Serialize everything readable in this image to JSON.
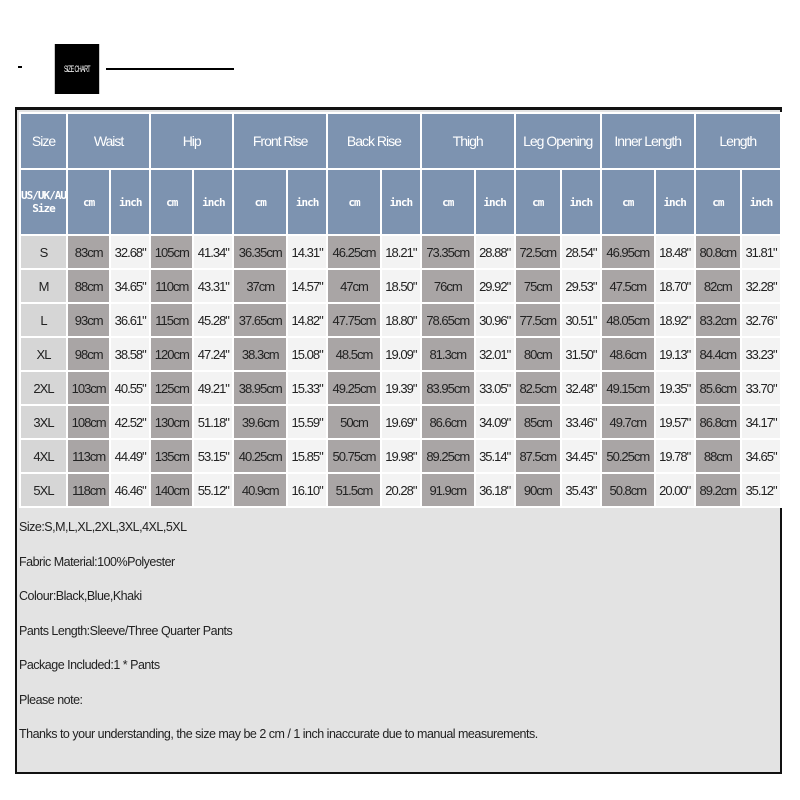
{
  "banner": {
    "label": "SIZE CHART"
  },
  "table": {
    "headers": [
      "Size",
      "Waist",
      "Hip",
      "Front Rise",
      "Back Rise",
      "Thigh",
      "Leg Opening",
      "Inner Length",
      "Length"
    ],
    "size_label": "US/UK/AU Size",
    "unit_cm": "cm",
    "unit_inch": "inch",
    "rows": [
      [
        "S",
        "83cm",
        "32.68\"",
        "105cm",
        "41.34\"",
        "36.35cm",
        "14.31\"",
        "46.25cm",
        "18.21\"",
        "73.35cm",
        "28.88\"",
        "72.5cm",
        "28.54\"",
        "46.95cm",
        "18.48\"",
        "80.8cm",
        "31.81\""
      ],
      [
        "M",
        "88cm",
        "34.65\"",
        "110cm",
        "43.31\"",
        "37cm",
        "14.57\"",
        "47cm",
        "18.50\"",
        "76cm",
        "29.92\"",
        "75cm",
        "29.53\"",
        "47.5cm",
        "18.70\"",
        "82cm",
        "32.28\""
      ],
      [
        "L",
        "93cm",
        "36.61\"",
        "115cm",
        "45.28\"",
        "37.65cm",
        "14.82\"",
        "47.75cm",
        "18.80\"",
        "78.65cm",
        "30.96\"",
        "77.5cm",
        "30.51\"",
        "48.05cm",
        "18.92\"",
        "83.2cm",
        "32.76\""
      ],
      [
        "XL",
        "98cm",
        "38.58\"",
        "120cm",
        "47.24\"",
        "38.3cm",
        "15.08\"",
        "48.5cm",
        "19.09\"",
        "81.3cm",
        "32.01\"",
        "80cm",
        "31.50\"",
        "48.6cm",
        "19.13\"",
        "84.4cm",
        "33.23\""
      ],
      [
        "2XL",
        "103cm",
        "40.55\"",
        "125cm",
        "49.21\"",
        "38.95cm",
        "15.33\"",
        "49.25cm",
        "19.39\"",
        "83.95cm",
        "33.05\"",
        "82.5cm",
        "32.48\"",
        "49.15cm",
        "19.35\"",
        "85.6cm",
        "33.70\""
      ],
      [
        "3XL",
        "108cm",
        "42.52\"",
        "130cm",
        "51.18\"",
        "39.6cm",
        "15.59\"",
        "50cm",
        "19.69\"",
        "86.6cm",
        "34.09\"",
        "85cm",
        "33.46\"",
        "49.7cm",
        "19.57\"",
        "86.8cm",
        "34.17\""
      ],
      [
        "4XL",
        "113cm",
        "44.49\"",
        "135cm",
        "53.15\"",
        "40.25cm",
        "15.85\"",
        "50.75cm",
        "19.98\"",
        "89.25cm",
        "35.14\"",
        "87.5cm",
        "34.45\"",
        "50.25cm",
        "19.78\"",
        "88cm",
        "34.65\""
      ],
      [
        "5XL",
        "118cm",
        "46.46\"",
        "140cm",
        "55.12\"",
        "40.9cm",
        "16.10\"",
        "51.5cm",
        "20.28\"",
        "91.9cm",
        "36.18\"",
        "90cm",
        "35.43\"",
        "50.8cm",
        "20.00\"",
        "89.2cm",
        "35.12\""
      ]
    ]
  },
  "notes": [
    "Size:S,M,L,XL,2XL,3XL,4XL,5XL",
    "Fabric Material:100%Polyester",
    "Colour:Black,Blue,Khaki",
    "Pants Length:Sleeve/Three Quarter Pants",
    "Package Included:1 * Pants",
    "Please note:",
    "Thanks to your understanding, the size may be 2 cm / 1 inch inaccurate due to manual measurements."
  ]
}
